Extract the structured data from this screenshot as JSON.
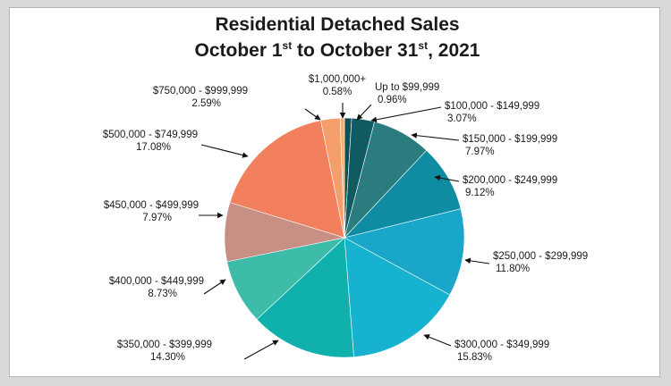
{
  "chart_data": {
    "type": "pie",
    "title": {
      "line1": "Residential Detached Sales",
      "line2_a": "October 1",
      "line2_sup1": "st",
      "line2_b": " to October 31",
      "line2_sup2": "st",
      "line2_c": ", 2021"
    },
    "slices": [
      {
        "range": "Up to $99,999",
        "pct_label": "0.96%",
        "value": 0.96,
        "color": "#0f4f55"
      },
      {
        "range": "$100,000 - $149,999",
        "pct_label": "3.07%",
        "value": 3.07,
        "color": "#0f5b61"
      },
      {
        "range": "$150,000 - $199,999",
        "pct_label": "7.97%",
        "value": 7.97,
        "color": "#2a7c7f"
      },
      {
        "range": "$200,000 - $249,999",
        "pct_label": "9.12%",
        "value": 9.12,
        "color": "#0f8ca2"
      },
      {
        "range": "$250,000 - $299,999",
        "pct_label": "11.80%",
        "value": 11.8,
        "color": "#1aa6c8"
      },
      {
        "range": "$300,000 - $349,999",
        "pct_label": "15.83%",
        "value": 15.83,
        "color": "#17b2cf"
      },
      {
        "range": "$350,000 - $399,999",
        "pct_label": "14.30%",
        "value": 14.3,
        "color": "#10b0ad"
      },
      {
        "range": "$400,000 - $449,999",
        "pct_label": "8.73%",
        "value": 8.73,
        "color": "#3dbcaa"
      },
      {
        "range": "$450,000 - $499,999",
        "pct_label": "7.97%",
        "value": 7.97,
        "color": "#c88f84"
      },
      {
        "range": "$500,000 - $749,999",
        "pct_label": "17.08%",
        "value": 17.08,
        "color": "#f2805e"
      },
      {
        "range": "$750,000 - $999,999",
        "pct_label": "2.59%",
        "value": 2.59,
        "color": "#f49f6b"
      },
      {
        "range": "$1,000,000+",
        "pct_label": "0.58%",
        "value": 0.58,
        "color": "#f6b06a"
      }
    ]
  }
}
